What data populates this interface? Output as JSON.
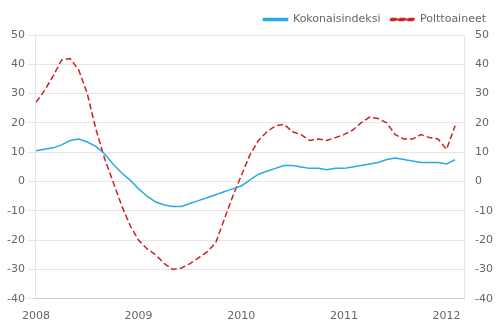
{
  "chart_data": {
    "type": "line",
    "x": [
      2008.0,
      2008.083,
      2008.167,
      2008.25,
      2008.333,
      2008.417,
      2008.5,
      2008.583,
      2008.667,
      2008.75,
      2008.833,
      2008.917,
      2009.0,
      2009.083,
      2009.167,
      2009.25,
      2009.333,
      2009.417,
      2009.5,
      2009.583,
      2009.667,
      2009.75,
      2009.833,
      2009.917,
      2010.0,
      2010.083,
      2010.167,
      2010.25,
      2010.333,
      2010.417,
      2010.5,
      2010.583,
      2010.667,
      2010.75,
      2010.833,
      2010.917,
      2011.0,
      2011.083,
      2011.167,
      2011.25,
      2011.333,
      2011.417,
      2011.5,
      2011.583,
      2011.667,
      2011.75,
      2011.833,
      2011.917,
      2012.0,
      2012.083
    ],
    "xlim": [
      2008.0,
      2012.17
    ],
    "xticks": [
      2008,
      2009,
      2010,
      2011,
      2012
    ],
    "ylim": [
      -40,
      50
    ],
    "yticks": [
      -40,
      -30,
      -20,
      -10,
      0,
      10,
      20,
      30,
      40,
      50
    ],
    "y2lim": [
      -40,
      50
    ],
    "y2ticks": [
      -40,
      -30,
      -20,
      -10,
      0,
      10,
      20,
      30,
      40,
      50
    ],
    "grid": "y",
    "legend": "upper right",
    "series": [
      {
        "name": "Kokonaisindeksi",
        "color": "#29aae2",
        "line_style": "solid",
        "values": [
          10.5,
          11.0,
          11.5,
          12.5,
          14.0,
          14.5,
          13.5,
          12.0,
          9.5,
          6.0,
          3.0,
          0.5,
          -2.5,
          -5.0,
          -7.0,
          -8.0,
          -8.5,
          -8.5,
          -7.5,
          -6.5,
          -5.5,
          -4.5,
          -3.5,
          -2.5,
          -1.5,
          0.5,
          2.5,
          3.5,
          4.5,
          5.5,
          5.5,
          5.0,
          4.5,
          4.5,
          4.0,
          4.5,
          4.5,
          5.0,
          5.5,
          6.0,
          6.5,
          7.5,
          8.0,
          7.5,
          7.0,
          6.5,
          6.5,
          6.5,
          6.0,
          7.5
        ]
      },
      {
        "name": "Polttoaineet",
        "color": "#cc2222",
        "line_style": "dashed",
        "axis": "y2",
        "values": [
          27.0,
          31.0,
          36.0,
          41.5,
          42.0,
          38.0,
          30.0,
          18.0,
          8.0,
          0.0,
          -8.0,
          -15.0,
          -20.0,
          -23.0,
          -25.0,
          -28.0,
          -30.0,
          -29.5,
          -28.0,
          -26.0,
          -24.0,
          -21.0,
          -13.0,
          -5.0,
          2.0,
          9.0,
          14.0,
          17.0,
          19.0,
          19.5,
          17.0,
          16.0,
          14.0,
          14.5,
          14.0,
          15.0,
          16.0,
          17.5,
          20.0,
          22.0,
          21.5,
          20.0,
          16.0,
          14.5,
          14.5,
          16.0,
          15.0,
          14.5,
          11.0,
          19.0
        ]
      }
    ]
  }
}
